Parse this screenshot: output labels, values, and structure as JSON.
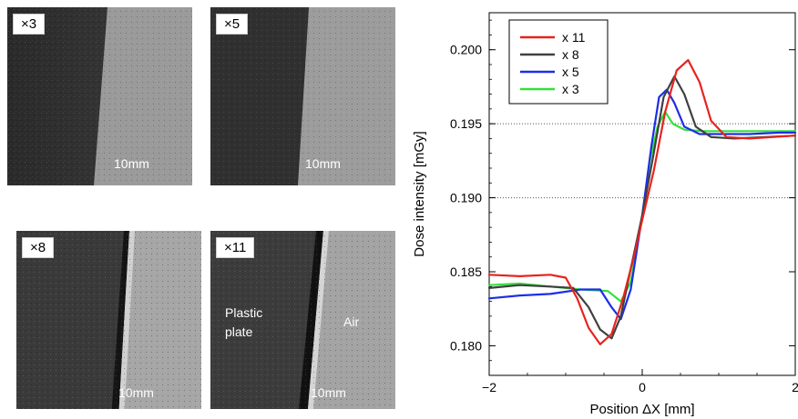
{
  "images": [
    {
      "magnification": "×3",
      "scale_label": "10mm"
    },
    {
      "magnification": "×5",
      "scale_label": "10mm"
    },
    {
      "magnification": "×8",
      "scale_label": "10mm"
    },
    {
      "magnification": "×11",
      "scale_label": "10mm",
      "left_label_line1": "Plastic",
      "left_label_line2": "plate",
      "right_label": "Air"
    }
  ],
  "chart_data": {
    "type": "line",
    "xlabel": "Position ΔX [mm]",
    "ylabel": "Dose intensity [mGy]",
    "xlim": [
      -2,
      2
    ],
    "ylim": [
      0.178,
      0.2025
    ],
    "xticks": [
      -2,
      0,
      2
    ],
    "yticks": [
      0.18,
      0.185,
      0.19,
      0.195,
      0.2
    ],
    "xtick_labels": [
      "−2",
      "0",
      "2"
    ],
    "ytick_labels": [
      "0.180",
      "0.185",
      "0.190",
      "0.195",
      "0.200"
    ],
    "reference_lines": [
      0.195,
      0.19
    ],
    "legend_position": "top-left",
    "series": [
      {
        "name": "x 11",
        "color": "#e8231d",
        "x": [
          -2.0,
          -1.6,
          -1.2,
          -1.0,
          -0.85,
          -0.7,
          -0.55,
          -0.4,
          -0.25,
          -0.1,
          0.0,
          0.15,
          0.3,
          0.45,
          0.6,
          0.75,
          0.9,
          1.1,
          1.4,
          1.7,
          2.0
        ],
        "y": [
          0.1848,
          0.1847,
          0.1848,
          0.1846,
          0.1832,
          0.1812,
          0.1801,
          0.1808,
          0.1832,
          0.1862,
          0.1885,
          0.1918,
          0.1958,
          0.1986,
          0.1993,
          0.1978,
          0.1952,
          0.1941,
          0.194,
          0.1941,
          0.1942
        ]
      },
      {
        "name": "x 8",
        "color": "#404040",
        "x": [
          -2.0,
          -1.6,
          -1.2,
          -0.9,
          -0.7,
          -0.55,
          -0.4,
          -0.28,
          -0.15,
          0.0,
          0.15,
          0.28,
          0.42,
          0.55,
          0.7,
          0.9,
          1.2,
          1.6,
          2.0
        ],
        "y": [
          0.1839,
          0.1841,
          0.184,
          0.1839,
          0.1826,
          0.1811,
          0.1805,
          0.182,
          0.1852,
          0.1888,
          0.193,
          0.1968,
          0.1982,
          0.197,
          0.1948,
          0.1941,
          0.194,
          0.1941,
          0.1942
        ]
      },
      {
        "name": "x 5",
        "color": "#1c2ee8",
        "x": [
          -2.0,
          -1.6,
          -1.2,
          -0.8,
          -0.55,
          -0.4,
          -0.28,
          -0.15,
          0.0,
          0.12,
          0.22,
          0.32,
          0.42,
          0.55,
          0.75,
          1.0,
          1.4,
          1.8,
          2.0
        ],
        "y": [
          0.1832,
          0.1834,
          0.1835,
          0.1838,
          0.1838,
          0.1826,
          0.1818,
          0.1838,
          0.1888,
          0.1935,
          0.1968,
          0.1973,
          0.1964,
          0.1948,
          0.1943,
          0.1943,
          0.1943,
          0.1944,
          0.1944
        ]
      },
      {
        "name": "x 3",
        "color": "#33e03b",
        "x": [
          -2.0,
          -1.6,
          -1.2,
          -0.8,
          -0.45,
          -0.28,
          -0.15,
          0.0,
          0.1,
          0.2,
          0.3,
          0.4,
          0.55,
          0.8,
          1.1,
          1.5,
          2.0
        ],
        "y": [
          0.1841,
          0.1842,
          0.184,
          0.1838,
          0.1837,
          0.183,
          0.1843,
          0.1888,
          0.1925,
          0.1948,
          0.1958,
          0.195,
          0.1946,
          0.1945,
          0.1945,
          0.1945,
          0.1945
        ]
      }
    ]
  }
}
